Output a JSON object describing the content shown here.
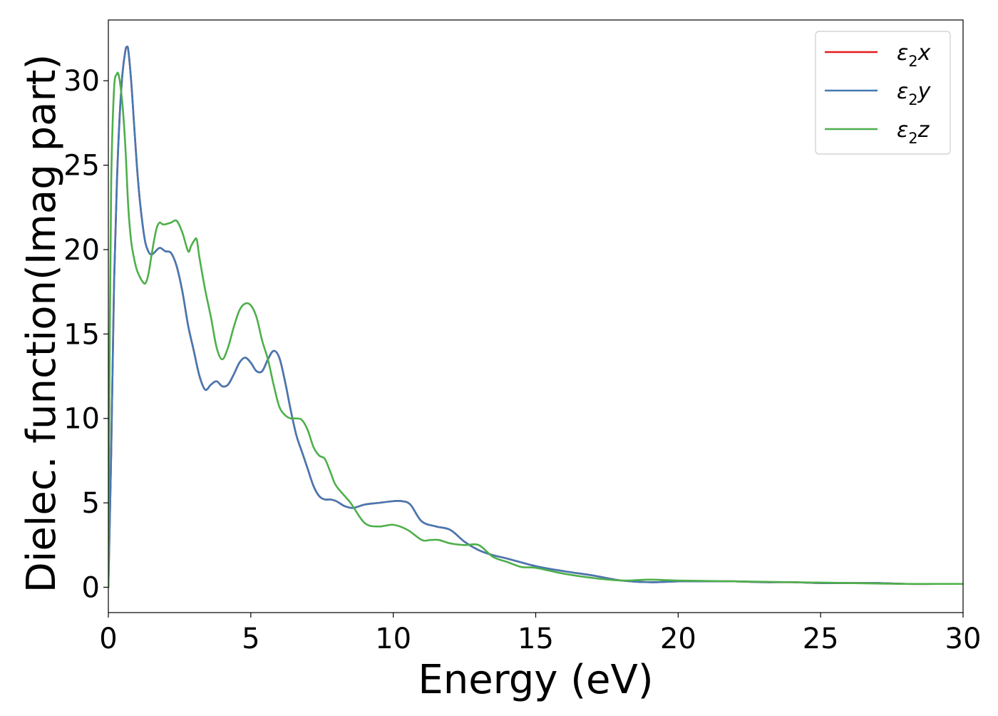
{
  "chart_data": {
    "type": "line",
    "xlabel": "Energy (eV)",
    "ylabel": "Dielec. function(Imag part)",
    "xlim": [
      0,
      30
    ],
    "ylim": [
      -1.5,
      33.6
    ],
    "xticks": [
      0,
      5,
      10,
      15,
      20,
      25,
      30
    ],
    "yticks": [
      0,
      5,
      10,
      15,
      20,
      25,
      30
    ],
    "grid": false,
    "legend_position": "top-right",
    "series": [
      {
        "name": "ε₂x",
        "legend_base": "ε",
        "legend_sub": "2",
        "legend_tail": "x",
        "color": "#e41a1c",
        "x": [
          0,
          0.1,
          0.2,
          0.3,
          0.4,
          0.5,
          0.6,
          0.65,
          0.7,
          0.8,
          0.9,
          1.0,
          1.1,
          1.2,
          1.3,
          1.4,
          1.5,
          1.6,
          1.8,
          2.0,
          2.2,
          2.4,
          2.6,
          2.8,
          3.0,
          3.2,
          3.4,
          3.6,
          3.8,
          4.0,
          4.2,
          4.4,
          4.6,
          4.8,
          5.0,
          5.2,
          5.4,
          5.6,
          5.8,
          6.0,
          6.2,
          6.4,
          6.6,
          6.8,
          7.0,
          7.2,
          7.4,
          7.6,
          7.8,
          8.0,
          8.3,
          8.6,
          9.0,
          9.5,
          10.0,
          10.3,
          10.6,
          11.0,
          11.5,
          12.0,
          12.5,
          13.0,
          13.5,
          14.0,
          15.0,
          16.0,
          17.0,
          18.0,
          19.0,
          20.0,
          21.0,
          22.0,
          23.0,
          24.0,
          25.0,
          26.0,
          27.0,
          28.0,
          29.0,
          30.0
        ],
        "y": [
          0,
          8,
          18,
          24,
          28,
          30.5,
          31.8,
          32.0,
          31.8,
          30.0,
          27.5,
          25.0,
          23.0,
          21.5,
          20.4,
          19.9,
          19.7,
          19.8,
          20.1,
          19.9,
          19.8,
          19.0,
          17.5,
          15.5,
          14.0,
          12.5,
          11.7,
          12.0,
          12.2,
          11.9,
          12.0,
          12.6,
          13.3,
          13.6,
          13.3,
          12.8,
          12.8,
          13.5,
          14.0,
          13.6,
          12.2,
          10.5,
          9.0,
          8.0,
          7.0,
          6.0,
          5.4,
          5.2,
          5.2,
          5.1,
          4.8,
          4.7,
          4.9,
          5.0,
          5.1,
          5.1,
          4.9,
          3.9,
          3.6,
          3.4,
          2.7,
          2.2,
          1.9,
          1.7,
          1.25,
          0.95,
          0.7,
          0.4,
          0.3,
          0.35,
          0.35,
          0.35,
          0.3,
          0.3,
          0.25,
          0.25,
          0.25,
          0.2,
          0.2,
          0.2
        ]
      },
      {
        "name": "ε₂y",
        "legend_base": "ε",
        "legend_sub": "2",
        "legend_tail": "y",
        "color": "#4479b3",
        "x": [
          0,
          0.1,
          0.2,
          0.3,
          0.4,
          0.5,
          0.6,
          0.65,
          0.7,
          0.8,
          0.9,
          1.0,
          1.1,
          1.2,
          1.3,
          1.4,
          1.5,
          1.6,
          1.8,
          2.0,
          2.2,
          2.4,
          2.6,
          2.8,
          3.0,
          3.2,
          3.4,
          3.6,
          3.8,
          4.0,
          4.2,
          4.4,
          4.6,
          4.8,
          5.0,
          5.2,
          5.4,
          5.6,
          5.8,
          6.0,
          6.2,
          6.4,
          6.6,
          6.8,
          7.0,
          7.2,
          7.4,
          7.6,
          7.8,
          8.0,
          8.3,
          8.6,
          9.0,
          9.5,
          10.0,
          10.3,
          10.6,
          11.0,
          11.5,
          12.0,
          12.5,
          13.0,
          13.5,
          14.0,
          15.0,
          16.0,
          17.0,
          18.0,
          19.0,
          20.0,
          21.0,
          22.0,
          23.0,
          24.0,
          25.0,
          26.0,
          27.0,
          28.0,
          29.0,
          30.0
        ],
        "y": [
          0,
          8,
          18,
          24,
          28,
          30.5,
          31.8,
          32.0,
          31.8,
          30.0,
          27.5,
          25.0,
          23.0,
          21.5,
          20.4,
          19.9,
          19.7,
          19.8,
          20.1,
          19.9,
          19.8,
          19.0,
          17.5,
          15.5,
          14.0,
          12.5,
          11.7,
          12.0,
          12.2,
          11.9,
          12.0,
          12.6,
          13.3,
          13.6,
          13.3,
          12.8,
          12.8,
          13.5,
          14.0,
          13.6,
          12.2,
          10.5,
          9.0,
          8.0,
          7.0,
          6.0,
          5.4,
          5.2,
          5.2,
          5.1,
          4.8,
          4.7,
          4.9,
          5.0,
          5.1,
          5.1,
          4.9,
          3.9,
          3.6,
          3.4,
          2.7,
          2.2,
          1.9,
          1.7,
          1.25,
          0.95,
          0.7,
          0.4,
          0.3,
          0.35,
          0.35,
          0.35,
          0.3,
          0.3,
          0.25,
          0.25,
          0.25,
          0.2,
          0.2,
          0.2
        ]
      },
      {
        "name": "ε₂z",
        "legend_base": "ε",
        "legend_sub": "2",
        "legend_tail": "z",
        "color": "#4daf4a",
        "x": [
          0,
          0.05,
          0.1,
          0.2,
          0.3,
          0.35,
          0.4,
          0.5,
          0.6,
          0.7,
          0.8,
          0.9,
          1.0,
          1.1,
          1.2,
          1.3,
          1.4,
          1.5,
          1.6,
          1.7,
          1.8,
          1.9,
          2.0,
          2.2,
          2.4,
          2.6,
          2.8,
          2.9,
          3.0,
          3.1,
          3.2,
          3.4,
          3.6,
          3.8,
          4.0,
          4.2,
          4.4,
          4.6,
          4.8,
          5.0,
          5.2,
          5.4,
          5.6,
          5.8,
          6.0,
          6.2,
          6.4,
          6.6,
          6.8,
          7.0,
          7.2,
          7.4,
          7.6,
          7.8,
          8.0,
          8.5,
          9.0,
          9.5,
          10.0,
          10.5,
          11.0,
          11.3,
          11.6,
          12.0,
          12.5,
          13.0,
          13.5,
          14.0,
          14.5,
          15.0,
          16.0,
          17.0,
          18.0,
          19.0,
          20.0,
          22.0,
          24.0,
          26.0,
          28.0,
          30.0
        ],
        "y": [
          0,
          15,
          24,
          29.5,
          30.4,
          30.4,
          30.0,
          28.5,
          26.0,
          22.5,
          20.5,
          19.5,
          18.8,
          18.4,
          18.1,
          18.0,
          18.5,
          19.5,
          20.5,
          21.3,
          21.6,
          21.5,
          21.5,
          21.6,
          21.7,
          21.0,
          19.9,
          20.2,
          20.5,
          20.6,
          19.5,
          17.6,
          16.0,
          14.2,
          13.5,
          14.2,
          15.4,
          16.4,
          16.8,
          16.7,
          16.0,
          14.6,
          13.5,
          12.0,
          10.7,
          10.2,
          10.0,
          10.0,
          9.9,
          9.3,
          8.3,
          7.8,
          7.6,
          6.8,
          6.0,
          5.0,
          3.8,
          3.6,
          3.7,
          3.4,
          2.8,
          2.8,
          2.8,
          2.6,
          2.5,
          2.5,
          1.8,
          1.5,
          1.2,
          1.15,
          0.8,
          0.55,
          0.4,
          0.45,
          0.4,
          0.35,
          0.3,
          0.25,
          0.2,
          0.2
        ]
      }
    ]
  }
}
